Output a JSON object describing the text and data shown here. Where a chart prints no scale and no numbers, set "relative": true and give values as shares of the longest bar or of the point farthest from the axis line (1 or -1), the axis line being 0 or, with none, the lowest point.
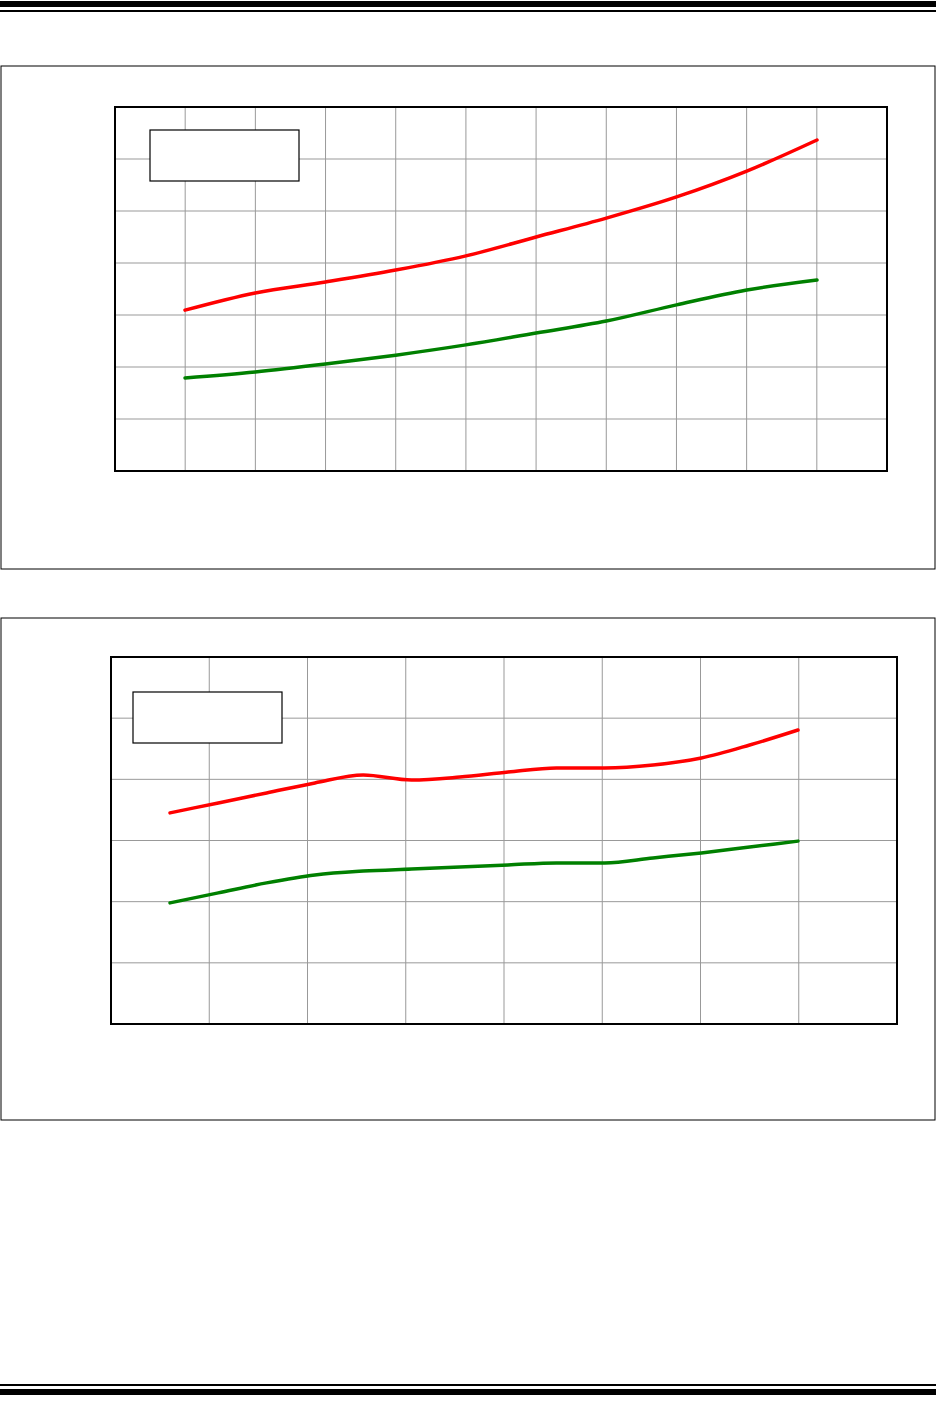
{
  "chart_data": [
    {
      "type": "line",
      "relative": true,
      "grid": true,
      "categories": [
        null,
        null,
        null,
        null,
        null,
        null,
        null,
        null,
        null,
        null
      ],
      "series": [
        {
          "color": "#ff0000",
          "values": [
            0.486,
            0.538,
            0.571,
            0.607,
            0.65,
            0.707,
            0.764,
            0.828,
            0.906,
            1
          ]
        },
        {
          "color": "#008000",
          "values": [
            0.281,
            0.299,
            0.323,
            0.35,
            0.381,
            0.417,
            0.453,
            0.502,
            0.547,
            0.577
          ]
        }
      ]
    },
    {
      "type": "line",
      "relative": true,
      "grid": true,
      "categories": [
        null,
        null,
        null,
        null,
        null,
        null,
        null,
        null,
        null,
        null,
        null,
        null,
        null,
        null
      ],
      "series": [
        {
          "color": "#ff0000",
          "values": [
            0.718,
            0.752,
            0.786,
            0.82,
            0.847,
            0.83,
            0.84,
            0.857,
            0.871,
            0.871,
            0.881,
            0.905,
            0.949,
            1
          ]
        },
        {
          "color": "#008000",
          "values": [
            0.412,
            0.446,
            0.48,
            0.507,
            0.52,
            0.527,
            0.534,
            0.541,
            0.548,
            0.548,
            0.565,
            0.582,
            0.602,
            0.622
          ]
        }
      ]
    }
  ]
}
